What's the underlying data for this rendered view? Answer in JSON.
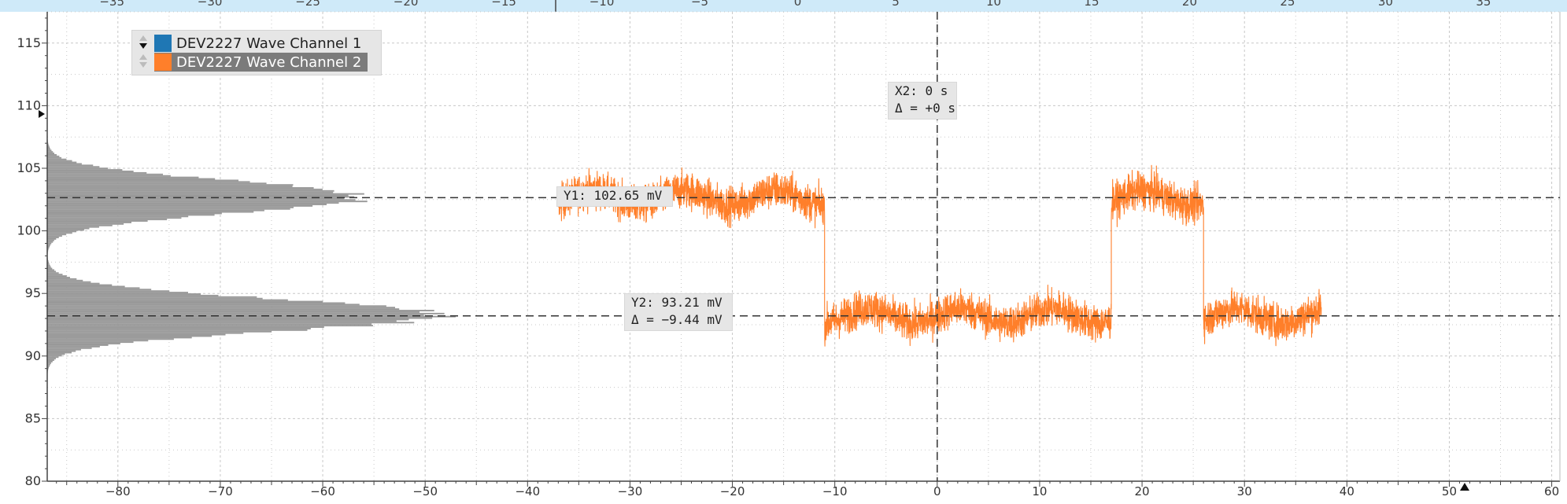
{
  "chart_data": {
    "type": "line",
    "title": "",
    "xlabel": "",
    "ylabel": "",
    "top_axis": {
      "ticks": [
        -35,
        -30,
        -25,
        -20,
        -15,
        -10,
        -5,
        0,
        5,
        10,
        15,
        20,
        25,
        30,
        35
      ],
      "tick_labels": [
        "−35",
        "−30",
        "−25",
        "−20",
        "−15",
        "−10",
        "−5",
        "0",
        "5",
        "10",
        "15",
        "20",
        "25",
        "30",
        "35"
      ],
      "range": [
        -38.3,
        38.9
      ]
    },
    "x_axis": {
      "ticks": [
        -80,
        -70,
        -60,
        -50,
        -40,
        -30,
        -20,
        -10,
        0,
        10,
        20,
        30,
        40,
        50,
        60
      ],
      "tick_labels": [
        "−80",
        "−70",
        "−60",
        "−50",
        "−40",
        "−30",
        "−20",
        "−10",
        "0",
        "10",
        "20",
        "30",
        "40",
        "50",
        "60"
      ],
      "range": [
        -86.9,
        60.8
      ]
    },
    "y_axis": {
      "ticks": [
        80,
        85,
        90,
        95,
        100,
        105,
        110,
        115
      ],
      "tick_labels": [
        "80",
        "85",
        "90",
        "95",
        "100",
        "105",
        "110",
        "115"
      ],
      "range": [
        80,
        117.5
      ]
    },
    "grid": true,
    "legend_position": "top-left",
    "series": [
      {
        "name": "DEV2227 Wave Channel 1",
        "color": "#1f77b4",
        "values": []
      },
      {
        "name": "DEV2227 Wave Channel 2",
        "color": "#ff7f2a",
        "segments": [
          {
            "x_start": -37,
            "x_end": -11,
            "level": 102.65
          },
          {
            "x_start": -11,
            "x_end": 17,
            "level": 93.21
          },
          {
            "x_start": 17,
            "x_end": 26,
            "level": 102.65
          },
          {
            "x_start": 26,
            "x_end": 37.5,
            "level": 93.21
          }
        ],
        "noise_amplitude": 2.5
      }
    ],
    "histogram": {
      "color": "#999999",
      "peaks": [
        {
          "y_center": 102.65,
          "y_spread": 1.6,
          "x_min": -86.9,
          "x_max": -56
        },
        {
          "y_center": 93.21,
          "y_spread": 1.6,
          "x_min": -86.9,
          "x_max": -49
        }
      ]
    },
    "cursors": {
      "x2": {
        "x": 0,
        "label": "X2: 0 s",
        "delta": "Δ = +0 s"
      },
      "y1": {
        "y": 102.65,
        "label": "Y1: 102.65 mV"
      },
      "y2": {
        "y": 93.21,
        "label": "Y2: 93.21 mV",
        "delta": "Δ = −9.44 mV"
      }
    }
  },
  "legend": {
    "items": [
      {
        "label": "DEV2227 Wave Channel 1",
        "color": "#1f77b4"
      },
      {
        "label": "DEV2227 Wave Channel 2",
        "color": "#ff7f2a"
      }
    ]
  },
  "colors": {
    "top_strip": "#cfeaf9",
    "grid": "#c8c8c8",
    "axis": "#444444",
    "cursor": "#333333"
  }
}
